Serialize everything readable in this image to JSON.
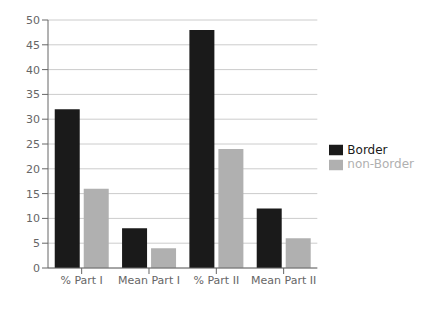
{
  "chart_data": {
    "type": "bar",
    "categories": [
      "% Part I",
      "Mean Part I",
      "% Part II",
      "Mean Part II"
    ],
    "series": [
      {
        "name": "Border",
        "color": "#1a1a1a",
        "values": [
          32,
          8,
          48,
          12
        ]
      },
      {
        "name": "non-Border",
        "color": "#b0b0b0",
        "values": [
          16,
          4,
          24,
          6
        ]
      }
    ],
    "ylim": [
      0,
      50
    ],
    "yticks": [
      0,
      5,
      10,
      15,
      20,
      25,
      30,
      35,
      40,
      45,
      50
    ],
    "grid": true,
    "legend": "right"
  }
}
